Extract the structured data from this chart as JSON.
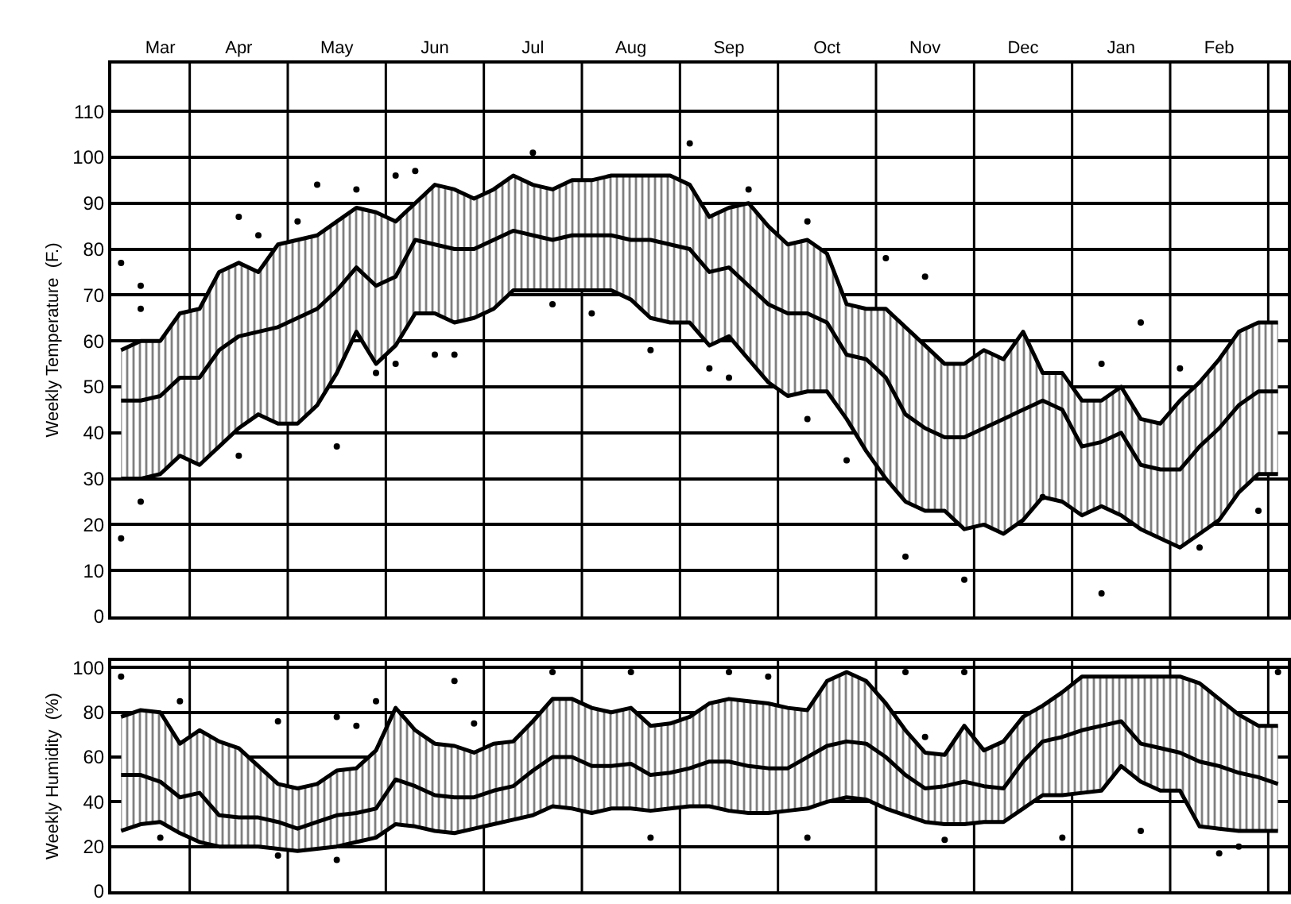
{
  "chart_data": [
    {
      "type": "line",
      "ylabel": "Weekly Temperature  (F.)",
      "ylim": [
        0,
        120.4
      ],
      "categories": [
        null,
        null,
        "Mar",
        null,
        null,
        null,
        "Apr",
        null,
        null,
        null,
        null,
        "May",
        null,
        null,
        null,
        null,
        "Jun",
        null,
        null,
        null,
        null,
        "Jul",
        null,
        null,
        null,
        null,
        "Aug",
        null,
        null,
        null,
        null,
        "Sep",
        null,
        null,
        null,
        null,
        "Oct",
        null,
        null,
        null,
        null,
        "Nov",
        null,
        null,
        null,
        null,
        "Dec",
        null,
        null,
        null,
        null,
        "Jan",
        null,
        null,
        null,
        null,
        "Feb",
        null,
        null,
        null
      ],
      "yticks": [
        0,
        10,
        20,
        30,
        40,
        50,
        60,
        70,
        80,
        90,
        100,
        110
      ],
      "grid": true,
      "line_style": "solid",
      "series": [
        {
          "color": "#000000",
          "values": [
            30,
            30,
            31,
            35,
            33,
            37,
            41,
            44,
            42,
            42,
            46,
            53,
            62,
            55,
            59,
            66,
            66,
            64,
            65,
            67,
            71,
            71,
            71,
            71,
            71,
            71,
            69,
            65,
            64,
            64,
            59,
            61,
            56,
            51,
            48,
            49,
            49,
            43,
            36,
            30,
            25,
            23,
            23,
            19,
            20,
            18,
            21,
            26,
            25,
            22,
            24,
            22,
            19,
            17,
            15,
            18,
            21,
            27,
            31,
            31
          ]
        },
        {
          "type": "area",
          "color": "#000000",
          "values": [
            58,
            60,
            60,
            66,
            67,
            75,
            77,
            75,
            81,
            82,
            83,
            86,
            89,
            88,
            86,
            90,
            94,
            93,
            91,
            93,
            96,
            94,
            93,
            95,
            95,
            96,
            96,
            96,
            96,
            94,
            87,
            89,
            90,
            85,
            81,
            82,
            79,
            68,
            67,
            67,
            63,
            59,
            55,
            55,
            58,
            56,
            62,
            53,
            53,
            47,
            47,
            50,
            43,
            42,
            47,
            51,
            56,
            62,
            64,
            64
          ]
        },
        {
          "color": "#000000",
          "values": [
            47,
            47,
            48,
            52,
            52,
            58,
            61,
            62,
            63,
            65,
            67,
            71,
            76,
            72,
            74,
            82,
            81,
            80,
            80,
            82,
            84,
            83,
            82,
            83,
            83,
            83,
            82,
            82,
            81,
            80,
            75,
            76,
            72,
            68,
            66,
            66,
            64,
            57,
            56,
            52,
            44,
            41,
            39,
            39,
            41,
            43,
            45,
            47,
            45,
            37,
            38,
            40,
            33,
            32,
            32,
            37,
            41,
            46,
            49,
            49
          ]
        },
        {
          "type": "scatter",
          "color": "#000000",
          "marker": "circle",
          "values": [
            77,
            72,
            null,
            null,
            null,
            null,
            87,
            83,
            null,
            86,
            94,
            37,
            93,
            53,
            96,
            97,
            57,
            57,
            null,
            null,
            null,
            101,
            68,
            null,
            66,
            null,
            null,
            58,
            null,
            103,
            54,
            52,
            93,
            null,
            null,
            86,
            null,
            34,
            null,
            78,
            13,
            74,
            null,
            8,
            null,
            null,
            null,
            26,
            null,
            null,
            55,
            null,
            64,
            null,
            54,
            15,
            null,
            null,
            23,
            null
          ]
        },
        {
          "type": "scatter",
          "color": "#000000",
          "marker": "circle",
          "values": [
            17,
            67,
            null,
            null,
            null,
            null,
            35,
            null,
            null,
            null,
            null,
            null,
            null,
            null,
            55,
            null,
            null,
            null,
            null,
            null,
            null,
            null,
            null,
            null,
            null,
            null,
            null,
            null,
            null,
            null,
            null,
            null,
            null,
            null,
            null,
            43,
            null,
            null,
            null,
            null,
            null,
            null,
            null,
            null,
            null,
            null,
            null,
            null,
            null,
            null,
            5,
            null,
            null,
            null,
            null,
            null,
            null,
            null,
            null,
            null
          ]
        },
        {
          "type": "scatter",
          "color": "#000000",
          "marker": "circle",
          "values": [
            null,
            25,
            null,
            null,
            null,
            null,
            null,
            null,
            null,
            null,
            null,
            null,
            null,
            null,
            null,
            null,
            null,
            null,
            null,
            null,
            null,
            null,
            null,
            null,
            null,
            null,
            null,
            null,
            null,
            null,
            null,
            null,
            null,
            null,
            null,
            null,
            null,
            null,
            null,
            null,
            null,
            null,
            null,
            null,
            null,
            null,
            null,
            null,
            null,
            null,
            null,
            null,
            null,
            null,
            null,
            null,
            null,
            null,
            null,
            null
          ]
        }
      ]
    },
    {
      "type": "line",
      "ylabel": "Weekly Humidity  (%)",
      "ylim": [
        0,
        103
      ],
      "tick_labels": "y",
      "categories": [
        null,
        null,
        null,
        null,
        null,
        null,
        null,
        null,
        null,
        null,
        null,
        null,
        null,
        null,
        null,
        null,
        null,
        null,
        null,
        null,
        null,
        null,
        null,
        null,
        null,
        null,
        null,
        null,
        null,
        null,
        null,
        null,
        null,
        null,
        null,
        null,
        null,
        null,
        null,
        null,
        null,
        null,
        null,
        null,
        null,
        null,
        null,
        null,
        null,
        null,
        null,
        null,
        null,
        null,
        null,
        null,
        null,
        null,
        null,
        null
      ],
      "yticks": [
        0,
        20,
        40,
        60,
        80,
        100
      ],
      "grid": true,
      "line_style": "solid",
      "series": [
        {
          "color": "#000000",
          "values": [
            27,
            30,
            31,
            26,
            22,
            20,
            20,
            20,
            19,
            18,
            19,
            20,
            22,
            24,
            30,
            29,
            27,
            26,
            28,
            30,
            32,
            34,
            38,
            37,
            35,
            37,
            37,
            36,
            37,
            38,
            38,
            36,
            35,
            35,
            36,
            37,
            40,
            42,
            41,
            37,
            34,
            31,
            30,
            30,
            31,
            31,
            37,
            43,
            43,
            44,
            45,
            56,
            49,
            45,
            45,
            29,
            28,
            27,
            27,
            27
          ]
        },
        {
          "type": "area",
          "color": "#000000",
          "values": [
            78,
            81,
            80,
            66,
            72,
            67,
            64,
            56,
            48,
            46,
            48,
            54,
            55,
            63,
            82,
            72,
            66,
            65,
            62,
            66,
            67,
            76,
            86,
            86,
            82,
            80,
            82,
            74,
            75,
            78,
            84,
            86,
            85,
            84,
            82,
            81,
            94,
            98,
            94,
            84,
            72,
            62,
            61,
            74,
            63,
            67,
            78,
            83,
            89,
            96,
            96,
            96,
            96,
            96,
            96,
            93,
            86,
            79,
            74,
            74
          ]
        },
        {
          "color": "#000000",
          "values": [
            52,
            52,
            49,
            42,
            44,
            34,
            33,
            33,
            31,
            28,
            31,
            34,
            35,
            37,
            50,
            47,
            43,
            42,
            42,
            45,
            47,
            54,
            60,
            60,
            56,
            56,
            57,
            52,
            53,
            55,
            58,
            58,
            56,
            55,
            55,
            60,
            65,
            67,
            66,
            60,
            52,
            46,
            47,
            49,
            47,
            46,
            58,
            67,
            69,
            72,
            74,
            76,
            66,
            64,
            62,
            58,
            56,
            53,
            51,
            48
          ]
        },
        {
          "type": "scatter",
          "color": "#000000",
          "marker": "circle",
          "values": [
            96,
            null,
            24,
            85,
            null,
            null,
            null,
            null,
            76,
            null,
            null,
            78,
            74,
            85,
            null,
            null,
            null,
            94,
            75,
            null,
            null,
            null,
            98,
            null,
            null,
            null,
            98,
            24,
            null,
            null,
            null,
            98,
            null,
            96,
            null,
            24,
            null,
            null,
            null,
            null,
            98,
            69,
            23,
            98,
            null,
            null,
            null,
            null,
            24,
            null,
            null,
            null,
            27,
            null,
            null,
            null,
            17,
            20,
            null,
            98
          ]
        },
        {
          "type": "scatter",
          "color": "#000000",
          "marker": "circle",
          "values": [
            null,
            null,
            null,
            null,
            null,
            null,
            null,
            null,
            16,
            null,
            null,
            14,
            null,
            null,
            null,
            null,
            null,
            null,
            null,
            null,
            null,
            null,
            null,
            null,
            null,
            null,
            null,
            null,
            null,
            null,
            null,
            null,
            null,
            null,
            null,
            null,
            null,
            null,
            null,
            null,
            null,
            null,
            null,
            null,
            null,
            null,
            null,
            null,
            null,
            null,
            null,
            null,
            null,
            null,
            null,
            null,
            null,
            null,
            null,
            null
          ]
        }
      ]
    }
  ]
}
